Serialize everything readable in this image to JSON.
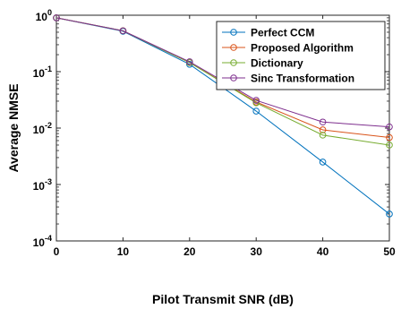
{
  "chart_data": {
    "type": "line",
    "xlabel": "Pilot Transmit SNR (dB)",
    "ylabel": "Average NMSE",
    "x": [
      0,
      10,
      20,
      30,
      40,
      50
    ],
    "xlim": [
      0,
      50
    ],
    "ylim": [
      0.0001,
      1
    ],
    "yscale": "log",
    "grid": false,
    "legend_position": "top-right",
    "x_ticks": [
      "0",
      "10",
      "20",
      "30",
      "40",
      "50"
    ],
    "y_ticks": [
      {
        "base": "10",
        "exp": "0",
        "value": 1
      },
      {
        "base": "10",
        "exp": "-1",
        "value": 0.1
      },
      {
        "base": "10",
        "exp": "-2",
        "value": 0.01
      },
      {
        "base": "10",
        "exp": "-3",
        "value": 0.001
      },
      {
        "base": "10",
        "exp": "-4",
        "value": 0.0001
      }
    ],
    "series": [
      {
        "name": "Perfect CCM",
        "color": "#0072BD",
        "values": [
          0.9,
          0.52,
          0.135,
          0.02,
          0.0025,
          0.0003
        ]
      },
      {
        "name": "Proposed Algorithm",
        "color": "#D95319",
        "values": [
          0.9,
          0.53,
          0.145,
          0.029,
          0.0093,
          0.0068
        ]
      },
      {
        "name": "Dictionary",
        "color": "#77AC30",
        "values": [
          0.9,
          0.53,
          0.145,
          0.028,
          0.0075,
          0.005
        ]
      },
      {
        "name": "Sinc Transformation",
        "color": "#7E2F8E",
        "values": [
          0.9,
          0.53,
          0.15,
          0.031,
          0.0128,
          0.0105
        ]
      }
    ]
  }
}
